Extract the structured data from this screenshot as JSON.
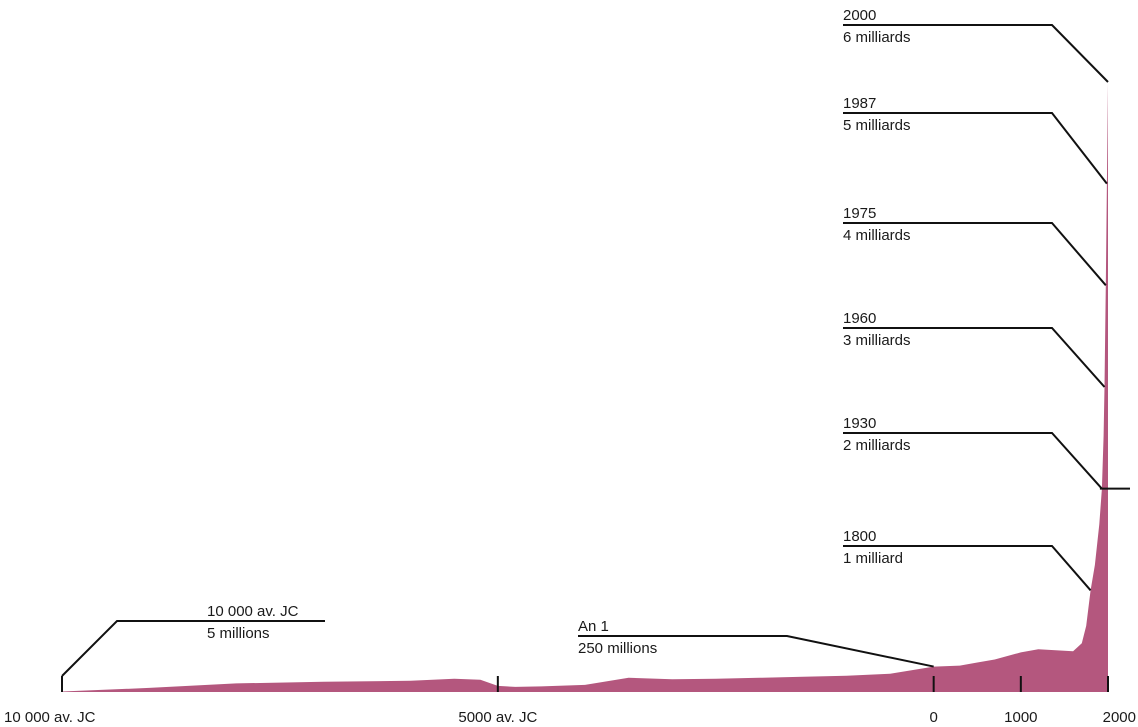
{
  "chart_data": {
    "type": "area",
    "title": "",
    "xlabel": "",
    "ylabel": "",
    "x_ticks": [
      {
        "x": -10000,
        "label": "10 000 av. JC"
      },
      {
        "x": -5000,
        "label": "5000 av. JC"
      },
      {
        "x": 0,
        "label": "0"
      },
      {
        "x": 1000,
        "label": "1000"
      },
      {
        "x": 2000,
        "label": "2000"
      }
    ],
    "xlim": [
      -10000,
      2000
    ],
    "ylim": [
      0,
      6000
    ],
    "y_unit": "millions",
    "fill_color": "#b4577e",
    "series": [
      {
        "x": [
          -10000,
          -9000,
          -8000,
          -7000,
          -6000,
          -5500,
          -5200,
          -5000,
          -4800,
          -4500,
          -4000,
          -3500,
          -3000,
          -2500,
          -2000,
          -1500,
          -1000,
          -500,
          0,
          300,
          500,
          700,
          1000,
          1200,
          1400,
          1600,
          1700,
          1750,
          1800,
          1850,
          1900,
          1930,
          1950,
          1960,
          1975,
          1987,
          2000
        ],
        "y": [
          5,
          40,
          85,
          100,
          110,
          130,
          120,
          60,
          50,
          55,
          70,
          140,
          125,
          130,
          140,
          150,
          160,
          180,
          250,
          260,
          290,
          320,
          390,
          420,
          410,
          400,
          480,
          650,
          1000,
          1250,
          1650,
          2000,
          2520,
          3000,
          4000,
          5000,
          6000
        ]
      }
    ],
    "annotations": [
      {
        "x": -10000,
        "y": 5,
        "year": "10 000 av. JC",
        "population": "5 millions"
      },
      {
        "x": 0,
        "y": 250,
        "year": "An 1",
        "population": "250 millions"
      },
      {
        "x": 1800,
        "y": 1000,
        "year": "1800",
        "population": "1 milliard"
      },
      {
        "x": 1930,
        "y": 2000,
        "year": "1930",
        "population": "2 milliards"
      },
      {
        "x": 1960,
        "y": 3000,
        "year": "1960",
        "population": "3 milliards"
      },
      {
        "x": 1975,
        "y": 4000,
        "year": "1975",
        "population": "4 milliards"
      },
      {
        "x": 1987,
        "y": 5000,
        "year": "1987",
        "population": "5 milliards"
      },
      {
        "x": 2000,
        "y": 6000,
        "year": "2000",
        "population": "6 milliards"
      }
    ]
  }
}
